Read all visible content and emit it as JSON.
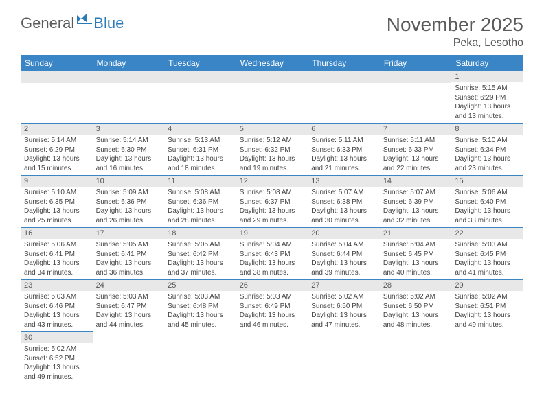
{
  "logo": {
    "part1": "General",
    "part2": "Blue"
  },
  "title": "November 2025",
  "location": "Peka, Lesotho",
  "styling": {
    "header_bg": "#3a85c6",
    "header_fg": "#ffffff",
    "daynum_bg": "#e8e8e8",
    "border_color": "#3a85c6",
    "logo_color1": "#5a5a5a",
    "logo_color2": "#2b7ab8",
    "title_color": "#5a5a5a",
    "body_font_size": 10,
    "header_font_size": 12,
    "title_font_size": 28
  },
  "day_headers": [
    "Sunday",
    "Monday",
    "Tuesday",
    "Wednesday",
    "Thursday",
    "Friday",
    "Saturday"
  ],
  "weeks": [
    [
      null,
      null,
      null,
      null,
      null,
      null,
      {
        "n": "1",
        "sr": "Sunrise: 5:15 AM",
        "ss": "Sunset: 6:29 PM",
        "d1": "Daylight: 13 hours",
        "d2": "and 13 minutes."
      }
    ],
    [
      {
        "n": "2",
        "sr": "Sunrise: 5:14 AM",
        "ss": "Sunset: 6:29 PM",
        "d1": "Daylight: 13 hours",
        "d2": "and 15 minutes."
      },
      {
        "n": "3",
        "sr": "Sunrise: 5:14 AM",
        "ss": "Sunset: 6:30 PM",
        "d1": "Daylight: 13 hours",
        "d2": "and 16 minutes."
      },
      {
        "n": "4",
        "sr": "Sunrise: 5:13 AM",
        "ss": "Sunset: 6:31 PM",
        "d1": "Daylight: 13 hours",
        "d2": "and 18 minutes."
      },
      {
        "n": "5",
        "sr": "Sunrise: 5:12 AM",
        "ss": "Sunset: 6:32 PM",
        "d1": "Daylight: 13 hours",
        "d2": "and 19 minutes."
      },
      {
        "n": "6",
        "sr": "Sunrise: 5:11 AM",
        "ss": "Sunset: 6:33 PM",
        "d1": "Daylight: 13 hours",
        "d2": "and 21 minutes."
      },
      {
        "n": "7",
        "sr": "Sunrise: 5:11 AM",
        "ss": "Sunset: 6:33 PM",
        "d1": "Daylight: 13 hours",
        "d2": "and 22 minutes."
      },
      {
        "n": "8",
        "sr": "Sunrise: 5:10 AM",
        "ss": "Sunset: 6:34 PM",
        "d1": "Daylight: 13 hours",
        "d2": "and 23 minutes."
      }
    ],
    [
      {
        "n": "9",
        "sr": "Sunrise: 5:10 AM",
        "ss": "Sunset: 6:35 PM",
        "d1": "Daylight: 13 hours",
        "d2": "and 25 minutes."
      },
      {
        "n": "10",
        "sr": "Sunrise: 5:09 AM",
        "ss": "Sunset: 6:36 PM",
        "d1": "Daylight: 13 hours",
        "d2": "and 26 minutes."
      },
      {
        "n": "11",
        "sr": "Sunrise: 5:08 AM",
        "ss": "Sunset: 6:36 PM",
        "d1": "Daylight: 13 hours",
        "d2": "and 28 minutes."
      },
      {
        "n": "12",
        "sr": "Sunrise: 5:08 AM",
        "ss": "Sunset: 6:37 PM",
        "d1": "Daylight: 13 hours",
        "d2": "and 29 minutes."
      },
      {
        "n": "13",
        "sr": "Sunrise: 5:07 AM",
        "ss": "Sunset: 6:38 PM",
        "d1": "Daylight: 13 hours",
        "d2": "and 30 minutes."
      },
      {
        "n": "14",
        "sr": "Sunrise: 5:07 AM",
        "ss": "Sunset: 6:39 PM",
        "d1": "Daylight: 13 hours",
        "d2": "and 32 minutes."
      },
      {
        "n": "15",
        "sr": "Sunrise: 5:06 AM",
        "ss": "Sunset: 6:40 PM",
        "d1": "Daylight: 13 hours",
        "d2": "and 33 minutes."
      }
    ],
    [
      {
        "n": "16",
        "sr": "Sunrise: 5:06 AM",
        "ss": "Sunset: 6:41 PM",
        "d1": "Daylight: 13 hours",
        "d2": "and 34 minutes."
      },
      {
        "n": "17",
        "sr": "Sunrise: 5:05 AM",
        "ss": "Sunset: 6:41 PM",
        "d1": "Daylight: 13 hours",
        "d2": "and 36 minutes."
      },
      {
        "n": "18",
        "sr": "Sunrise: 5:05 AM",
        "ss": "Sunset: 6:42 PM",
        "d1": "Daylight: 13 hours",
        "d2": "and 37 minutes."
      },
      {
        "n": "19",
        "sr": "Sunrise: 5:04 AM",
        "ss": "Sunset: 6:43 PM",
        "d1": "Daylight: 13 hours",
        "d2": "and 38 minutes."
      },
      {
        "n": "20",
        "sr": "Sunrise: 5:04 AM",
        "ss": "Sunset: 6:44 PM",
        "d1": "Daylight: 13 hours",
        "d2": "and 39 minutes."
      },
      {
        "n": "21",
        "sr": "Sunrise: 5:04 AM",
        "ss": "Sunset: 6:45 PM",
        "d1": "Daylight: 13 hours",
        "d2": "and 40 minutes."
      },
      {
        "n": "22",
        "sr": "Sunrise: 5:03 AM",
        "ss": "Sunset: 6:45 PM",
        "d1": "Daylight: 13 hours",
        "d2": "and 41 minutes."
      }
    ],
    [
      {
        "n": "23",
        "sr": "Sunrise: 5:03 AM",
        "ss": "Sunset: 6:46 PM",
        "d1": "Daylight: 13 hours",
        "d2": "and 43 minutes."
      },
      {
        "n": "24",
        "sr": "Sunrise: 5:03 AM",
        "ss": "Sunset: 6:47 PM",
        "d1": "Daylight: 13 hours",
        "d2": "and 44 minutes."
      },
      {
        "n": "25",
        "sr": "Sunrise: 5:03 AM",
        "ss": "Sunset: 6:48 PM",
        "d1": "Daylight: 13 hours",
        "d2": "and 45 minutes."
      },
      {
        "n": "26",
        "sr": "Sunrise: 5:03 AM",
        "ss": "Sunset: 6:49 PM",
        "d1": "Daylight: 13 hours",
        "d2": "and 46 minutes."
      },
      {
        "n": "27",
        "sr": "Sunrise: 5:02 AM",
        "ss": "Sunset: 6:50 PM",
        "d1": "Daylight: 13 hours",
        "d2": "and 47 minutes."
      },
      {
        "n": "28",
        "sr": "Sunrise: 5:02 AM",
        "ss": "Sunset: 6:50 PM",
        "d1": "Daylight: 13 hours",
        "d2": "and 48 minutes."
      },
      {
        "n": "29",
        "sr": "Sunrise: 5:02 AM",
        "ss": "Sunset: 6:51 PM",
        "d1": "Daylight: 13 hours",
        "d2": "and 49 minutes."
      }
    ],
    [
      {
        "n": "30",
        "sr": "Sunrise: 5:02 AM",
        "ss": "Sunset: 6:52 PM",
        "d1": "Daylight: 13 hours",
        "d2": "and 49 minutes."
      },
      null,
      null,
      null,
      null,
      null,
      null
    ]
  ]
}
